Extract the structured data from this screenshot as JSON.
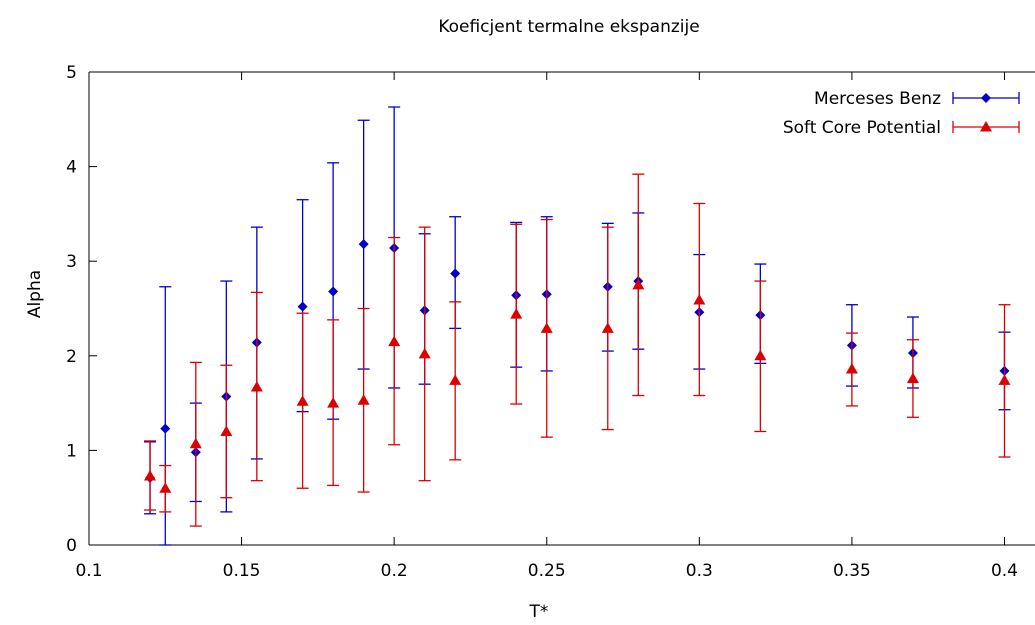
{
  "chart_data": {
    "type": "scatter",
    "title": "Koeficjent termalne ekspanzije",
    "xlabel": "T*",
    "ylabel": "Alpha",
    "xlim": [
      0.1,
      0.41
    ],
    "ylim": [
      0,
      5
    ],
    "xticks": [
      "0.1",
      "0.15",
      "0.2",
      "0.25",
      "0.3",
      "0.35",
      "0.4"
    ],
    "yticks": [
      "0",
      "1",
      "2",
      "3",
      "4",
      "5"
    ],
    "grid": false,
    "legend_position": "top-right",
    "series": [
      {
        "name": "Merceses Benz",
        "color": "#0000cc",
        "marker": "diamond",
        "points": [
          {
            "x": 0.12,
            "y": 0.71,
            "low": 0.33,
            "high": 1.09
          },
          {
            "x": 0.125,
            "y": 1.23,
            "low": 0.0,
            "high": 2.73
          },
          {
            "x": 0.135,
            "y": 0.98,
            "low": 0.46,
            "high": 1.5
          },
          {
            "x": 0.145,
            "y": 1.57,
            "low": 0.35,
            "high": 2.79
          },
          {
            "x": 0.155,
            "y": 2.14,
            "low": 0.91,
            "high": 3.36
          },
          {
            "x": 0.17,
            "y": 2.52,
            "low": 1.41,
            "high": 3.65
          },
          {
            "x": 0.18,
            "y": 2.68,
            "low": 1.33,
            "high": 4.04
          },
          {
            "x": 0.19,
            "y": 3.18,
            "low": 1.86,
            "high": 4.49
          },
          {
            "x": 0.2,
            "y": 3.14,
            "low": 1.66,
            "high": 4.63
          },
          {
            "x": 0.21,
            "y": 2.48,
            "low": 1.7,
            "high": 3.29
          },
          {
            "x": 0.22,
            "y": 2.87,
            "low": 2.29,
            "high": 3.47
          },
          {
            "x": 0.24,
            "y": 2.64,
            "low": 1.88,
            "high": 3.41
          },
          {
            "x": 0.25,
            "y": 2.65,
            "low": 1.84,
            "high": 3.47
          },
          {
            "x": 0.27,
            "y": 2.73,
            "low": 2.05,
            "high": 3.4
          },
          {
            "x": 0.28,
            "y": 2.79,
            "low": 2.07,
            "high": 3.51
          },
          {
            "x": 0.3,
            "y": 2.46,
            "low": 1.86,
            "high": 3.07
          },
          {
            "x": 0.32,
            "y": 2.43,
            "low": 1.92,
            "high": 2.97
          },
          {
            "x": 0.35,
            "y": 2.11,
            "low": 1.68,
            "high": 2.54
          },
          {
            "x": 0.37,
            "y": 2.03,
            "low": 1.66,
            "high": 2.41
          },
          {
            "x": 0.4,
            "y": 1.84,
            "low": 1.43,
            "high": 2.25
          }
        ]
      },
      {
        "name": "Soft Core Potential",
        "color": "#dd0000",
        "marker": "triangle",
        "points": [
          {
            "x": 0.12,
            "y": 0.73,
            "low": 0.37,
            "high": 1.1
          },
          {
            "x": 0.125,
            "y": 0.6,
            "low": 0.35,
            "high": 0.84
          },
          {
            "x": 0.135,
            "y": 1.07,
            "low": 0.2,
            "high": 1.93
          },
          {
            "x": 0.145,
            "y": 1.2,
            "low": 0.5,
            "high": 1.9
          },
          {
            "x": 0.155,
            "y": 1.67,
            "low": 0.68,
            "high": 2.67
          },
          {
            "x": 0.17,
            "y": 1.52,
            "low": 0.6,
            "high": 2.45
          },
          {
            "x": 0.18,
            "y": 1.5,
            "low": 0.63,
            "high": 2.38
          },
          {
            "x": 0.19,
            "y": 1.53,
            "low": 0.56,
            "high": 2.5
          },
          {
            "x": 0.2,
            "y": 2.15,
            "low": 1.06,
            "high": 3.25
          },
          {
            "x": 0.21,
            "y": 2.02,
            "low": 0.68,
            "high": 3.36
          },
          {
            "x": 0.22,
            "y": 1.74,
            "low": 0.9,
            "high": 2.57
          },
          {
            "x": 0.24,
            "y": 2.44,
            "low": 1.49,
            "high": 3.39
          },
          {
            "x": 0.25,
            "y": 2.29,
            "low": 1.14,
            "high": 3.44
          },
          {
            "x": 0.27,
            "y": 2.29,
            "low": 1.22,
            "high": 3.36
          },
          {
            "x": 0.28,
            "y": 2.75,
            "low": 1.58,
            "high": 3.92
          },
          {
            "x": 0.3,
            "y": 2.59,
            "low": 1.58,
            "high": 3.61
          },
          {
            "x": 0.32,
            "y": 2.0,
            "low": 1.2,
            "high": 2.79
          },
          {
            "x": 0.35,
            "y": 1.86,
            "low": 1.47,
            "high": 2.24
          },
          {
            "x": 0.37,
            "y": 1.76,
            "low": 1.35,
            "high": 2.17
          },
          {
            "x": 0.4,
            "y": 1.74,
            "low": 0.93,
            "high": 2.54
          }
        ]
      }
    ]
  }
}
